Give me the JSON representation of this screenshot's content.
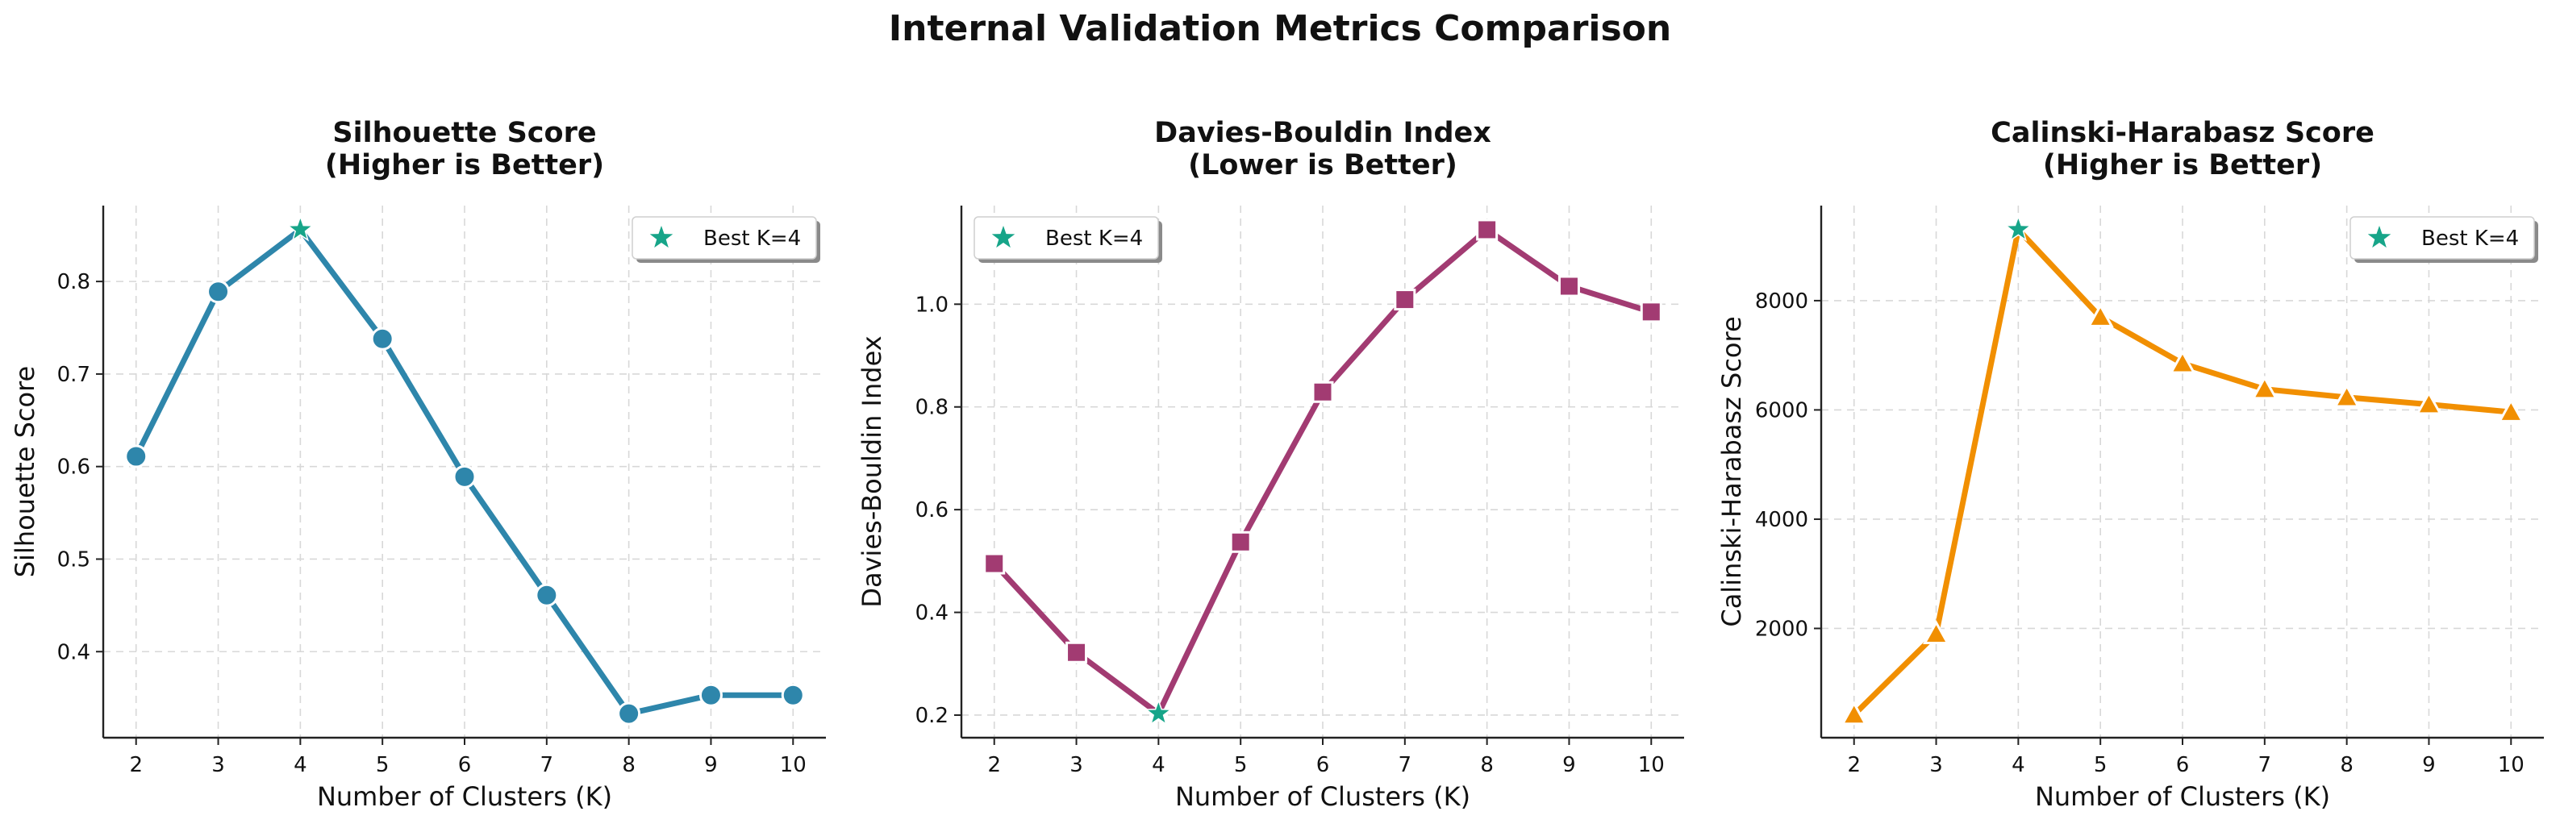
{
  "title": "Internal Validation Metrics Comparison",
  "chart_data": [
    {
      "type": "line",
      "title": "Silhouette Score",
      "subtitle": "(Higher is Better)",
      "xlabel": "Number of Clusters (K)",
      "ylabel": "Silhouette Score",
      "x": [
        2,
        3,
        4,
        5,
        6,
        7,
        8,
        9,
        10
      ],
      "y": [
        0.611,
        0.789,
        0.856,
        0.738,
        0.589,
        0.461,
        0.333,
        0.353,
        0.353
      ],
      "xlim": [
        1.6,
        10.4
      ],
      "ylim": [
        0.307,
        0.882
      ],
      "yticks": [
        0.4,
        0.5,
        0.6,
        0.7,
        0.8
      ],
      "ytick_labels": [
        "0.4",
        "0.5",
        "0.6",
        "0.7",
        "0.8"
      ],
      "xticks": [
        2,
        3,
        4,
        5,
        6,
        7,
        8,
        9,
        10
      ],
      "color": "#2e86ab",
      "marker": "circle",
      "best": {
        "x": 4,
        "y": 0.856,
        "label": "Best K=4"
      },
      "legend_position": "upper-right",
      "grid": true
    },
    {
      "type": "line",
      "title": "Davies-Bouldin Index",
      "subtitle": "(Lower is Better)",
      "xlabel": "Number of Clusters (K)",
      "ylabel": "Davies-Bouldin Index",
      "x": [
        2,
        3,
        4,
        5,
        6,
        7,
        8,
        9,
        10
      ],
      "y": [
        0.495,
        0.322,
        0.203,
        0.537,
        0.829,
        1.009,
        1.145,
        1.035,
        0.985
      ],
      "xlim": [
        1.6,
        10.4
      ],
      "ylim": [
        0.156,
        1.192
      ],
      "yticks": [
        0.2,
        0.4,
        0.6,
        0.8,
        1.0
      ],
      "ytick_labels": [
        "0.2",
        "0.4",
        "0.6",
        "0.8",
        "1.0"
      ],
      "xticks": [
        2,
        3,
        4,
        5,
        6,
        7,
        8,
        9,
        10
      ],
      "color": "#a23b72",
      "marker": "square",
      "best": {
        "x": 4,
        "y": 0.203,
        "label": "Best K=4"
      },
      "legend_position": "upper-left",
      "grid": true
    },
    {
      "type": "line",
      "title": "Calinski-Harabasz Score",
      "subtitle": "(Higher is Better)",
      "xlabel": "Number of Clusters (K)",
      "ylabel": "Calinski-Harabasz Score",
      "x": [
        2,
        3,
        4,
        5,
        6,
        7,
        8,
        9,
        10
      ],
      "y": [
        420,
        1900,
        9300,
        7700,
        6850,
        6380,
        6230,
        6100,
        5960
      ],
      "xlim": [
        1.6,
        10.4
      ],
      "ylim": [
        0,
        9740
      ],
      "yticks": [
        2000,
        4000,
        6000,
        8000
      ],
      "ytick_labels": [
        "2000",
        "4000",
        "6000",
        "8000"
      ],
      "xticks": [
        2,
        3,
        4,
        5,
        6,
        7,
        8,
        9,
        10
      ],
      "color": "#f18f01",
      "marker": "triangle",
      "best": {
        "x": 4,
        "y": 9300,
        "label": "Best K=4"
      },
      "legend_position": "upper-right",
      "grid": true
    }
  ],
  "colors": {
    "best_marker": "#17a589",
    "axis": "#222222",
    "grid": "#d8d8d8"
  }
}
